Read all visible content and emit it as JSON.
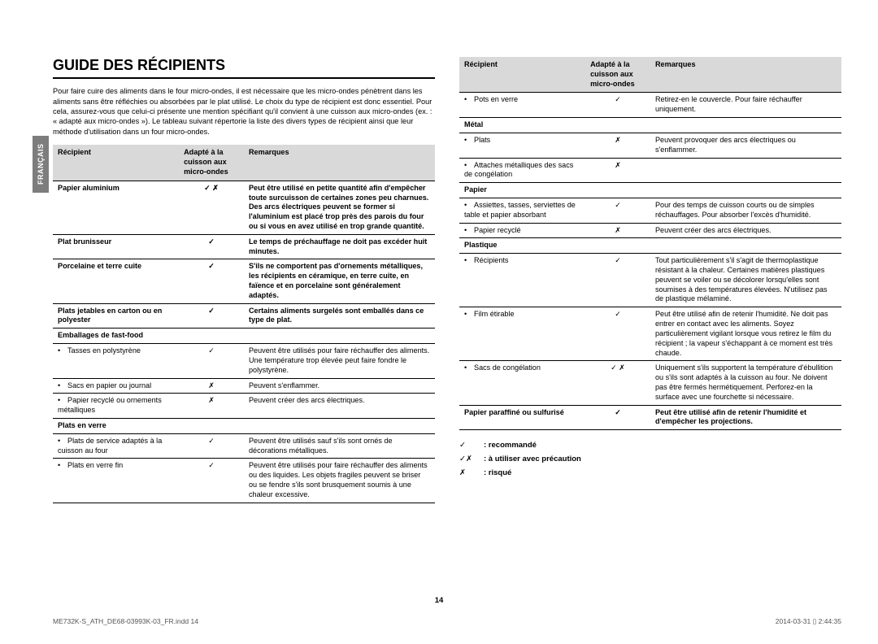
{
  "sideTab": "FRANÇAIS",
  "title": "GUIDE DES RÉCIPIENTS",
  "intro": "Pour faire cuire des aliments dans le four micro-ondes, il est nécessaire que les micro-ondes pénètrent dans les aliments sans être réfléchies ou absorbées par le plat utilisé. Le choix du type de récipient est donc essentiel. Pour cela, assurez-vous que celui-ci présente une mention spécifiant qu'il convient à une cuisson aux micro-ondes (ex. : « adapté aux micro-ondes »). Le tableau suivant répertorie la liste des divers types de récipient ainsi que leur méthode d'utilisation dans un four micro-ondes.",
  "headers": {
    "c1": "Récipient",
    "c2": "Adapté à la cuisson aux micro-ondes",
    "c3": "Remarques"
  },
  "left": [
    {
      "cat": true,
      "label": "Papier aluminium",
      "sym": "✓ ✗",
      "rem": "Peut être utilisé en petite quantité afin d'empêcher toute surcuisson de certaines zones peu charnues. Des arcs électriques peuvent se former si l'aluminium est placé trop près des parois du four ou si vous en avez utilisé en trop grande quantité."
    },
    {
      "cat": true,
      "label": "Plat brunisseur",
      "sym": "✓",
      "rem": "Le temps de préchauffage ne doit pas excéder huit minutes."
    },
    {
      "cat": true,
      "label": "Porcelaine et terre cuite",
      "sym": "✓",
      "rem": "S'ils ne comportent pas d'ornements métalliques, les récipients en céramique, en terre cuite, en faïence et en porcelaine sont généralement adaptés."
    },
    {
      "cat": true,
      "label": "Plats jetables en carton ou en polyester",
      "sym": "✓",
      "rem": "Certains aliments surgelés sont emballés dans ce type de plat."
    },
    {
      "cat": true,
      "label": "Emballages de fast-food",
      "sym": "",
      "rem": ""
    },
    {
      "bullet": true,
      "label": "Tasses en polystyrène",
      "sym": "✓",
      "rem": "Peuvent être utilisés pour faire réchauffer des aliments. Une température trop élevée peut faire fondre le polystyrène."
    },
    {
      "bullet": true,
      "label": "Sacs en papier ou journal",
      "sym": "✗",
      "rem": "Peuvent s'enflammer."
    },
    {
      "bullet": true,
      "label": "Papier recyclé ou ornements métalliques",
      "sym": "✗",
      "rem": "Peuvent créer des arcs électriques."
    },
    {
      "cat": true,
      "label": "Plats en verre",
      "sym": "",
      "rem": ""
    },
    {
      "bullet": true,
      "label": "Plats de service adaptés à la cuisson au four",
      "sym": "✓",
      "rem": "Peuvent être utilisés sauf s'ils sont ornés de décorations métalliques."
    },
    {
      "bullet": true,
      "label": "Plats en verre fin",
      "sym": "✓",
      "rem": "Peuvent être utilisés pour faire réchauffer des aliments ou des liquides. Les objets fragiles peuvent se briser ou se fendre s'ils sont brusquement soumis à une chaleur excessive."
    }
  ],
  "right": [
    {
      "bullet": true,
      "label": "Pots en verre",
      "sym": "✓",
      "rem": "Retirez-en le couvercle. Pour faire réchauffer uniquement."
    },
    {
      "cat": true,
      "label": "Métal",
      "sym": "",
      "rem": ""
    },
    {
      "bullet": true,
      "label": "Plats",
      "sym": "✗",
      "rem": "Peuvent provoquer des arcs électriques ou s'enflammer."
    },
    {
      "bullet": true,
      "label": "Attaches métalliques des sacs de congélation",
      "sym": "✗",
      "rem": ""
    },
    {
      "cat": true,
      "label": "Papier",
      "sym": "",
      "rem": ""
    },
    {
      "bullet": true,
      "label": "Assiettes, tasses, serviettes de table et papier absorbant",
      "sym": "✓",
      "rem": "Pour des temps de cuisson courts ou de simples réchauffages. Pour absorber l'excès d'humidité."
    },
    {
      "bullet": true,
      "label": "Papier recyclé",
      "sym": "✗",
      "rem": "Peuvent créer des arcs électriques."
    },
    {
      "cat": true,
      "label": "Plastique",
      "sym": "",
      "rem": ""
    },
    {
      "bullet": true,
      "label": "Récipients",
      "sym": "✓",
      "rem": "Tout particulièrement s'il s'agit de thermoplastique résistant à la chaleur. Certaines matières plastiques peuvent se voiler ou se décolorer lorsqu'elles sont soumises à des températures élevées. N'utilisez pas de plastique mélaminé."
    },
    {
      "bullet": true,
      "label": "Film étirable",
      "sym": "✓",
      "rem": "Peut être utilisé afin de retenir l'humidité. Ne doit pas entrer en contact avec les aliments. Soyez particulièrement vigilant lorsque vous retirez le film du récipient ; la vapeur s'échappant à ce moment est très chaude."
    },
    {
      "bullet": true,
      "label": "Sacs de congélation",
      "sym": "✓ ✗",
      "rem": "Uniquement s'ils supportent la température d'ébullition ou s'ils sont adaptés à la cuisson au four. Ne doivent pas être fermés hermétiquement. Perforez-en la surface avec une fourchette si nécessaire."
    },
    {
      "cat": true,
      "label": "Papier paraffiné ou sulfurisé",
      "sym": "✓",
      "rem": "Peut être utilisé afin de retenir l'humidité et d'empêcher les projections."
    }
  ],
  "legend": [
    {
      "sym": "✓",
      "text": ": recommandé"
    },
    {
      "sym": "✓✗",
      "text": ": à utiliser avec précaution"
    },
    {
      "sym": "✗",
      "text": ": risqué"
    }
  ],
  "pageNum": "14",
  "footerLeft": "ME732K-S_ATH_DE68-03993K-03_FR.indd   14",
  "footerRight": "2014-03-31   ▯ 2:44:35"
}
